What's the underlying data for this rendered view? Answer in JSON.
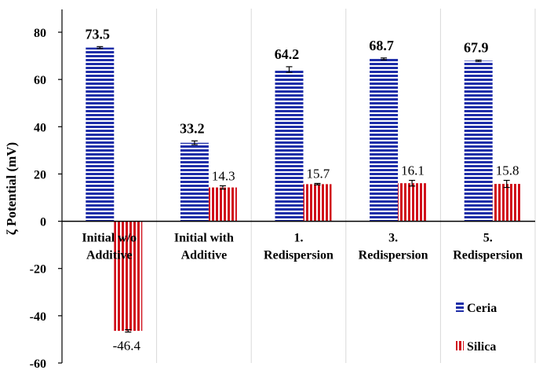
{
  "chart_data": {
    "type": "bar",
    "ylabel": "ζ Potential (mV)",
    "ylim": [
      -60,
      80
    ],
    "yticks": [
      "80",
      "60",
      "40",
      "20",
      "0",
      "-20",
      "-40",
      "-60"
    ],
    "grid": "vertical category separators only",
    "legend_position": "bottom-right",
    "categories": [
      [
        "Initial w/o",
        "Additive"
      ],
      [
        "Initial with",
        "Additive"
      ],
      [
        "1.",
        "Redispersion"
      ],
      [
        "3.",
        "Redispersion"
      ],
      [
        "5.",
        "Redispersion"
      ]
    ],
    "series": [
      {
        "name": "Ceria",
        "color": "#1f2ea8",
        "pattern": "horizontal-stripes",
        "values": [
          73.5,
          33.2,
          64.2,
          68.7,
          67.9
        ],
        "errors": [
          0.4,
          0.8,
          1.2,
          0.4,
          0.3
        ],
        "labels": [
          "73.5",
          "33.2",
          "64.2",
          "68.7",
          "67.9"
        ]
      },
      {
        "name": "Silica",
        "color": "#d0101c",
        "pattern": "vertical-stripes",
        "values": [
          -46.4,
          14.3,
          15.7,
          16.1,
          15.8
        ],
        "errors": [
          0.5,
          0.7,
          0.3,
          1.2,
          1.5
        ],
        "labels": [
          "-46.4",
          "14.3",
          "15.7",
          "16.1",
          "15.8"
        ]
      }
    ]
  }
}
